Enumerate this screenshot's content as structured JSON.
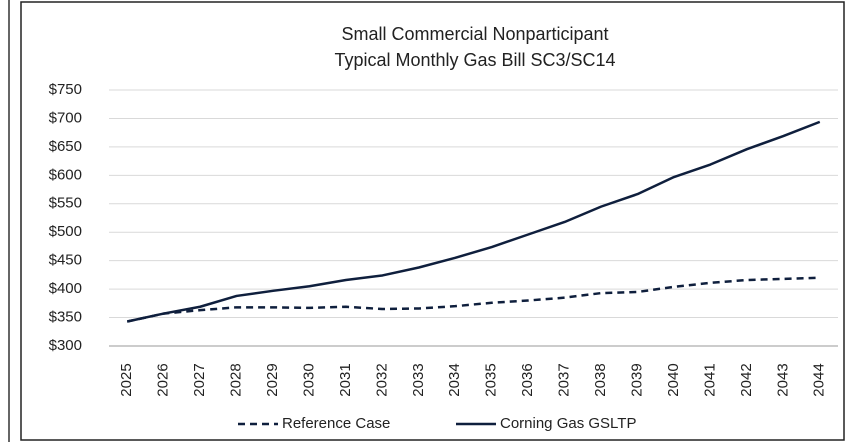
{
  "chart_data": {
    "type": "line",
    "title": [
      "Small Commercial Nonparticipant",
      "Typical Monthly Gas Bill SC3/SC14"
    ],
    "categories": [
      "2025",
      "2026",
      "2027",
      "2028",
      "2029",
      "2030",
      "2031",
      "2032",
      "2033",
      "2034",
      "2035",
      "2036",
      "2037",
      "2038",
      "2039",
      "2040",
      "2041",
      "2042",
      "2043",
      "2044"
    ],
    "series": [
      {
        "name": "Reference Case",
        "color": "#0f1f3d",
        "dashed": true,
        "values": [
          343,
          357,
          363,
          368,
          368,
          367,
          369,
          365,
          366,
          370,
          376,
          380,
          385,
          393,
          395,
          404,
          411,
          416,
          418,
          420
        ]
      },
      {
        "name": "Corning Gas GSLTP",
        "color": "#0f1f3d",
        "dashed": false,
        "values": [
          343,
          357,
          369,
          388,
          397,
          405,
          416,
          424,
          438,
          455,
          474,
          496,
          518,
          545,
          567,
          597,
          619,
          646,
          669,
          694
        ]
      }
    ],
    "ylim": [
      300,
      750
    ],
    "yticks": [
      {
        "value": 300,
        "label": "$300"
      },
      {
        "value": 350,
        "label": "$350"
      },
      {
        "value": 400,
        "label": "$400"
      },
      {
        "value": 450,
        "label": "$450"
      },
      {
        "value": 500,
        "label": "$500"
      },
      {
        "value": 550,
        "label": "$550"
      },
      {
        "value": 600,
        "label": "$600"
      },
      {
        "value": 650,
        "label": "$650"
      },
      {
        "value": 700,
        "label": "$700"
      },
      {
        "value": 750,
        "label": "$750"
      }
    ],
    "grid": true,
    "legend": "bottom"
  }
}
